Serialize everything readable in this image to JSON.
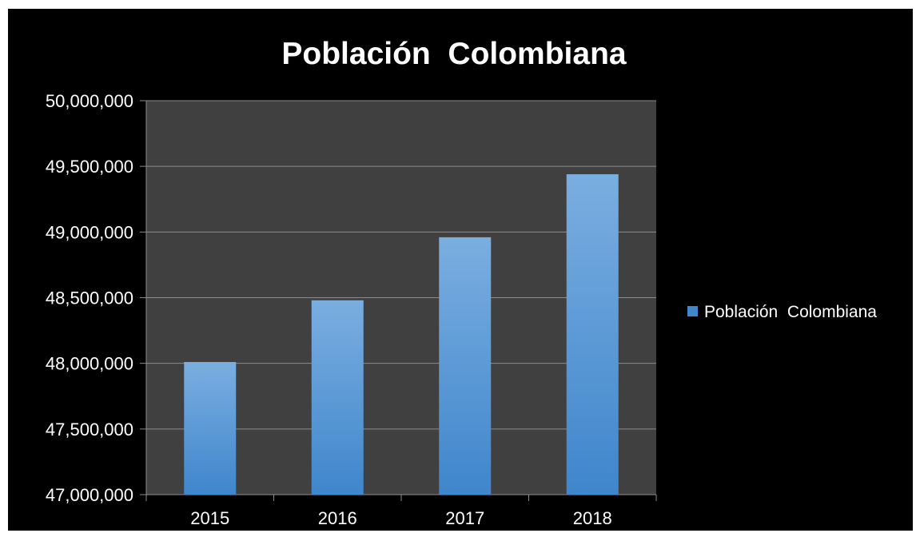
{
  "chart_data": {
    "type": "bar",
    "title": "Población  Colombiana",
    "categories": [
      "2015",
      "2016",
      "2017",
      "2018"
    ],
    "series": [
      {
        "name": "Población  Colombiana",
        "values": [
          48010000,
          48480000,
          48960000,
          49440000
        ]
      }
    ],
    "ylim": [
      47000000,
      50000000
    ],
    "yticks": [
      47000000,
      47500000,
      48000000,
      48500000,
      49000000,
      49500000,
      50000000
    ],
    "ytick_labels": [
      "47,000,000",
      "47,500,000",
      "48,000,000",
      "48,500,000",
      "49,000,000",
      "49,500,000",
      "50,000,000"
    ],
    "grid": true,
    "legend_position": "right",
    "colors": {
      "background": "#000000",
      "plot_area": "#404040",
      "gridline": "#8c8c8c",
      "bar_top": "#7aaee0",
      "bar_bottom": "#3f86cc",
      "text": "#ffffff"
    }
  }
}
